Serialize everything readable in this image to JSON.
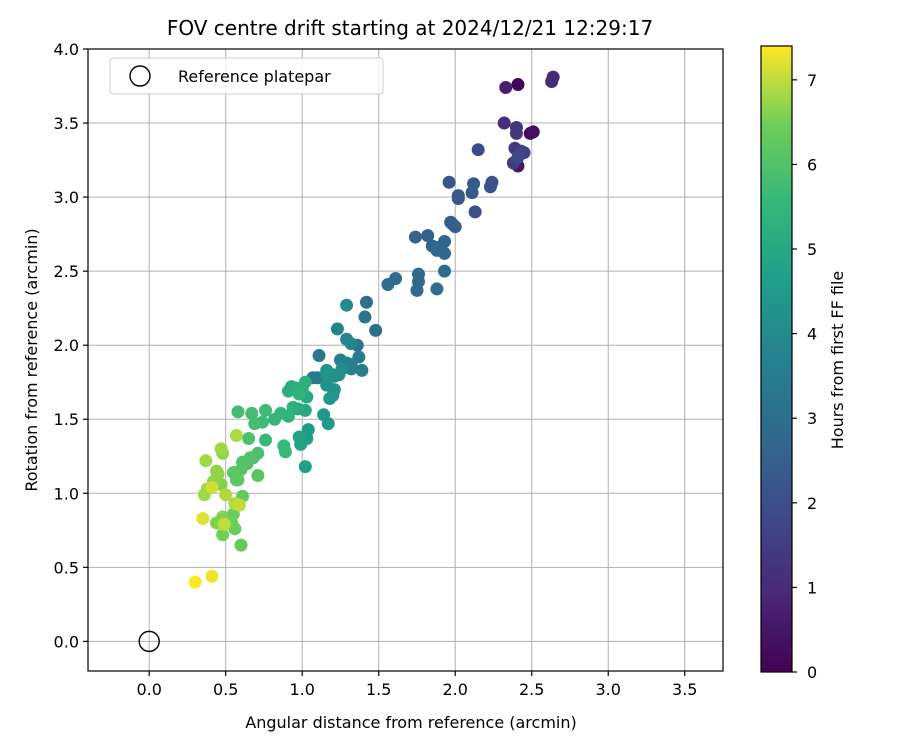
{
  "chart_data": {
    "type": "scatter",
    "title": "FOV centre drift starting at 2024/12/21 12:29:17",
    "xlabel": "Angular distance from reference (arcmin)",
    "ylabel": "Rotation from reference (arcmin)",
    "xlim": [
      -0.4,
      3.75
    ],
    "ylim": [
      -0.2,
      4.0
    ],
    "xticks": [
      "0.0",
      "0.5",
      "1.0",
      "1.5",
      "2.0",
      "2.5",
      "3.0",
      "3.5"
    ],
    "yticks": [
      "0.0",
      "0.5",
      "1.0",
      "1.5",
      "2.0",
      "2.5",
      "3.0",
      "3.5",
      "4.0"
    ],
    "xtick_values": [
      0.0,
      0.5,
      1.0,
      1.5,
      2.0,
      2.5,
      3.0,
      3.5
    ],
    "ytick_values": [
      0.0,
      0.5,
      1.0,
      1.5,
      2.0,
      2.5,
      3.0,
      3.5,
      4.0
    ],
    "grid": true,
    "legend": {
      "placement": "top-left",
      "entries": [
        {
          "label": "Reference platepar",
          "marker": "hollow-circle"
        }
      ]
    },
    "reference_point": {
      "x": 0.0,
      "y": 0.0
    },
    "colorbar": {
      "label": "Hours from first FF file",
      "colormap": "viridis",
      "range": [
        0,
        7.4
      ],
      "ticks": [
        "0",
        "1",
        "2",
        "3",
        "4",
        "5",
        "6",
        "7"
      ],
      "tick_values": [
        0,
        1,
        2,
        3,
        4,
        5,
        6,
        7
      ]
    },
    "points": [
      [
        2.41,
        3.76,
        0.1
      ],
      [
        2.49,
        3.43,
        0.2
      ],
      [
        2.51,
        3.44,
        0.3
      ],
      [
        2.41,
        3.21,
        0.5
      ],
      [
        2.33,
        3.74,
        0.7
      ],
      [
        2.64,
        3.81,
        0.9
      ],
      [
        2.63,
        3.78,
        1.0
      ],
      [
        2.32,
        3.5,
        1.1
      ],
      [
        2.4,
        3.47,
        1.2
      ],
      [
        2.4,
        3.43,
        1.3
      ],
      [
        2.39,
        3.33,
        1.4
      ],
      [
        2.38,
        3.23,
        1.5
      ],
      [
        2.43,
        3.31,
        1.6
      ],
      [
        2.45,
        3.3,
        1.7
      ],
      [
        2.41,
        3.27,
        1.8
      ],
      [
        2.15,
        3.32,
        1.9
      ],
      [
        2.13,
        2.9,
        2.0
      ],
      [
        2.23,
        3.07,
        2.1
      ],
      [
        2.24,
        3.1,
        2.1
      ],
      [
        1.96,
        3.1,
        2.2
      ],
      [
        2.02,
        2.99,
        2.2
      ],
      [
        2.02,
        3.01,
        2.3
      ],
      [
        2.11,
        3.03,
        2.3
      ],
      [
        2.12,
        3.09,
        2.4
      ],
      [
        1.98,
        2.82,
        2.4
      ],
      [
        2.0,
        2.8,
        2.5
      ],
      [
        1.97,
        2.83,
        2.5
      ],
      [
        1.82,
        2.74,
        2.5
      ],
      [
        1.74,
        2.73,
        2.6
      ],
      [
        1.85,
        2.67,
        2.6
      ],
      [
        1.89,
        2.66,
        2.7
      ],
      [
        1.93,
        2.62,
        2.7
      ],
      [
        1.93,
        2.7,
        2.7
      ],
      [
        1.88,
        2.64,
        2.8
      ],
      [
        1.76,
        2.48,
        2.8
      ],
      [
        1.76,
        2.43,
        2.8
      ],
      [
        1.75,
        2.37,
        2.8
      ],
      [
        1.88,
        2.38,
        2.9
      ],
      [
        1.93,
        2.5,
        2.9
      ],
      [
        1.61,
        2.45,
        2.9
      ],
      [
        1.56,
        2.41,
        3.0
      ],
      [
        1.48,
        2.1,
        3.0
      ],
      [
        1.42,
        2.29,
        3.1
      ],
      [
        1.41,
        2.19,
        3.2
      ],
      [
        1.36,
        2.0,
        3.2
      ],
      [
        1.11,
        1.93,
        3.3
      ],
      [
        1.07,
        1.78,
        3.3
      ],
      [
        1.1,
        1.78,
        3.4
      ],
      [
        1.29,
        1.88,
        3.4
      ],
      [
        1.31,
        1.86,
        3.5
      ],
      [
        1.37,
        1.92,
        3.5
      ],
      [
        1.39,
        1.83,
        3.5
      ],
      [
        1.32,
        1.84,
        3.6
      ],
      [
        1.32,
        1.87,
        3.6
      ],
      [
        1.25,
        1.9,
        3.6
      ],
      [
        1.29,
        2.04,
        3.7
      ],
      [
        1.32,
        2.01,
        3.8
      ],
      [
        1.23,
        2.11,
        3.8
      ],
      [
        1.29,
        2.27,
        4.0
      ],
      [
        1.26,
        1.84,
        4.0
      ],
      [
        1.24,
        1.8,
        4.1
      ],
      [
        1.2,
        1.8,
        4.1
      ],
      [
        1.21,
        1.79,
        4.1
      ],
      [
        1.16,
        1.8,
        4.2
      ],
      [
        1.16,
        1.73,
        4.2
      ],
      [
        1.16,
        1.83,
        4.3
      ],
      [
        1.21,
        1.7,
        4.3
      ],
      [
        1.2,
        1.66,
        4.4
      ],
      [
        1.18,
        1.64,
        4.4
      ],
      [
        1.14,
        1.53,
        4.5
      ],
      [
        1.17,
        1.47,
        4.5
      ],
      [
        1.04,
        1.43,
        4.6
      ],
      [
        1.03,
        1.37,
        4.6
      ],
      [
        1.02,
        1.18,
        4.7
      ],
      [
        0.99,
        1.33,
        4.8
      ],
      [
        0.98,
        1.38,
        4.8
      ],
      [
        0.97,
        1.57,
        4.9
      ],
      [
        1.02,
        1.56,
        5.0
      ],
      [
        1.03,
        1.65,
        5.0
      ],
      [
        1.0,
        1.7,
        5.1
      ],
      [
        0.93,
        1.72,
        5.1
      ],
      [
        0.96,
        1.71,
        5.2
      ],
      [
        0.91,
        1.69,
        5.2
      ],
      [
        0.94,
        1.58,
        5.3
      ],
      [
        1.02,
        1.75,
        5.3
      ],
      [
        0.98,
        1.67,
        5.4
      ],
      [
        0.91,
        1.52,
        5.4
      ],
      [
        0.86,
        1.54,
        5.5
      ],
      [
        0.82,
        1.5,
        5.5
      ],
      [
        0.88,
        1.32,
        5.6
      ],
      [
        0.89,
        1.28,
        5.6
      ],
      [
        0.76,
        1.36,
        5.6
      ],
      [
        0.76,
        1.56,
        5.7
      ],
      [
        0.74,
        1.48,
        5.7
      ],
      [
        0.69,
        1.47,
        5.8
      ],
      [
        0.67,
        1.54,
        5.8
      ],
      [
        0.58,
        1.55,
        5.8
      ],
      [
        0.65,
        1.37,
        5.9
      ],
      [
        0.71,
        1.27,
        5.9
      ],
      [
        0.68,
        1.24,
        5.9
      ],
      [
        0.66,
        1.24,
        6.0
      ],
      [
        0.64,
        1.2,
        6.0
      ],
      [
        0.61,
        1.21,
        6.0
      ],
      [
        0.6,
        1.16,
        6.1
      ],
      [
        0.71,
        1.12,
        6.1
      ],
      [
        0.58,
        1.09,
        6.2
      ],
      [
        0.55,
        1.14,
        6.2
      ],
      [
        0.57,
        1.09,
        6.2
      ],
      [
        0.61,
        0.98,
        6.3
      ],
      [
        0.6,
        0.65,
        6.3
      ],
      [
        0.56,
        0.76,
        6.4
      ],
      [
        0.54,
        0.8,
        6.4
      ],
      [
        0.55,
        0.86,
        6.4
      ],
      [
        0.51,
        0.81,
        6.5
      ],
      [
        0.48,
        0.72,
        6.5
      ],
      [
        0.48,
        0.84,
        6.6
      ],
      [
        0.44,
        0.8,
        6.6
      ],
      [
        0.47,
        1.06,
        6.6
      ],
      [
        0.45,
        1.13,
        6.7
      ],
      [
        0.42,
        1.08,
        6.7
      ],
      [
        0.44,
        1.15,
        6.7
      ],
      [
        0.48,
        1.27,
        6.7
      ],
      [
        0.37,
        1.22,
        6.8
      ],
      [
        0.36,
        0.99,
        6.8
      ],
      [
        0.38,
        1.03,
        6.8
      ],
      [
        0.47,
        1.3,
        6.8
      ],
      [
        0.57,
        1.39,
        6.9
      ],
      [
        0.5,
        0.99,
        6.9
      ],
      [
        0.56,
        0.93,
        6.9
      ],
      [
        0.59,
        0.92,
        7.0
      ],
      [
        0.49,
        0.79,
        7.0
      ],
      [
        0.41,
        1.04,
        7.1
      ],
      [
        0.35,
        0.83,
        7.2
      ],
      [
        0.41,
        0.44,
        7.3
      ],
      [
        0.3,
        0.4,
        7.4
      ]
    ]
  }
}
